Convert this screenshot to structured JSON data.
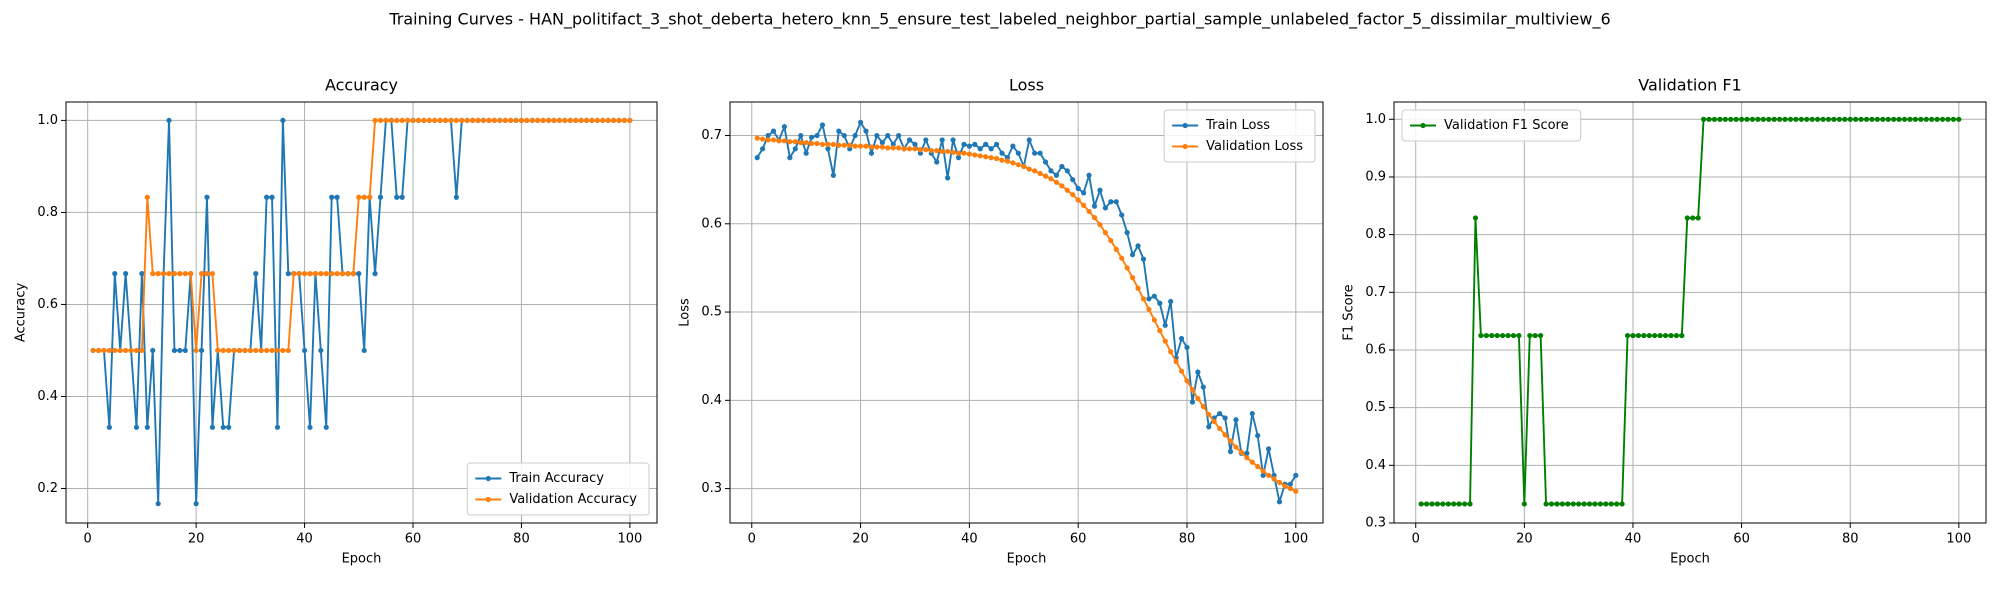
{
  "title": "Training Curves - HAN_politifact_3_shot_deberta_hetero_knn_5_ensure_test_labeled_neighbor_partial_sample_unlabeled_factor_5_dissimilar_multiview_6",
  "chart_data": [
    {
      "type": "line",
      "title": "Accuracy",
      "x_label": "Epoch",
      "y_label": "Accuracy",
      "grid": true,
      "legend": "lower right",
      "x": [
        1,
        2,
        3,
        4,
        5,
        6,
        7,
        8,
        9,
        10,
        11,
        12,
        13,
        14,
        15,
        16,
        17,
        18,
        19,
        20,
        21,
        22,
        23,
        24,
        25,
        26,
        27,
        28,
        29,
        30,
        31,
        32,
        33,
        34,
        35,
        36,
        37,
        38,
        39,
        40,
        41,
        42,
        43,
        44,
        45,
        46,
        47,
        48,
        49,
        50,
        51,
        52,
        53,
        54,
        55,
        56,
        57,
        58,
        59,
        60,
        61,
        62,
        63,
        64,
        65,
        66,
        67,
        68,
        69,
        70,
        71,
        72,
        73,
        74,
        75,
        76,
        77,
        78,
        79,
        80,
        81,
        82,
        83,
        84,
        85,
        86,
        87,
        88,
        89,
        90,
        91,
        92,
        93,
        94,
        95,
        96,
        97,
        98,
        99,
        100
      ],
      "xlim": [
        -4,
        105
      ],
      "xticks": [
        0,
        20,
        40,
        60,
        80,
        100
      ],
      "ylim": [
        0.125,
        1.04
      ],
      "yticks": [
        0.2,
        0.4,
        0.6,
        0.8,
        {
          "value": 1,
          "label": "1.0"
        }
      ],
      "series": [
        {
          "name": "Train Accuracy",
          "color": "#1f77b4",
          "values": [
            0.5,
            0.5,
            0.5,
            0.333,
            0.667,
            0.5,
            0.667,
            0.5,
            0.333,
            0.667,
            0.333,
            0.5,
            0.167,
            0.667,
            1.0,
            0.5,
            0.5,
            0.5,
            0.667,
            0.167,
            0.5,
            0.833,
            0.333,
            0.5,
            0.333,
            0.333,
            0.5,
            0.5,
            0.5,
            0.5,
            0.667,
            0.5,
            0.833,
            0.833,
            0.333,
            1.0,
            0.667,
            0.667,
            0.667,
            0.5,
            0.333,
            0.667,
            0.5,
            0.333,
            0.833,
            0.833,
            0.667,
            0.667,
            0.667,
            0.667,
            0.5,
            0.833,
            0.667,
            0.833,
            1.0,
            1.0,
            0.833,
            0.833,
            1.0,
            1.0,
            1.0,
            1.0,
            1.0,
            1.0,
            1.0,
            1.0,
            1.0,
            0.833,
            1.0,
            1.0,
            1.0,
            1.0,
            1.0,
            1.0,
            1.0,
            1.0,
            1.0,
            1.0,
            1.0,
            1.0,
            1.0,
            1.0,
            1.0,
            1.0,
            1.0,
            1.0,
            1.0,
            1.0,
            1.0,
            1.0,
            1.0,
            1.0,
            1.0,
            1.0,
            1.0,
            1.0,
            1.0,
            1.0,
            1.0,
            1.0
          ]
        },
        {
          "name": "Validation Accuracy",
          "color": "#ff7f0e",
          "values": [
            0.5,
            0.5,
            0.5,
            0.5,
            0.5,
            0.5,
            0.5,
            0.5,
            0.5,
            0.5,
            0.833,
            0.667,
            0.667,
            0.667,
            0.667,
            0.667,
            0.667,
            0.667,
            0.667,
            0.5,
            0.667,
            0.667,
            0.667,
            0.5,
            0.5,
            0.5,
            0.5,
            0.5,
            0.5,
            0.5,
            0.5,
            0.5,
            0.5,
            0.5,
            0.5,
            0.5,
            0.5,
            0.667,
            0.667,
            0.667,
            0.667,
            0.667,
            0.667,
            0.667,
            0.667,
            0.667,
            0.667,
            0.667,
            0.667,
            0.833,
            0.833,
            0.833,
            1.0,
            1.0,
            1.0,
            1.0,
            1.0,
            1.0,
            1.0,
            1.0,
            1.0,
            1.0,
            1.0,
            1.0,
            1.0,
            1.0,
            1.0,
            1.0,
            1.0,
            1.0,
            1.0,
            1.0,
            1.0,
            1.0,
            1.0,
            1.0,
            1.0,
            1.0,
            1.0,
            1.0,
            1.0,
            1.0,
            1.0,
            1.0,
            1.0,
            1.0,
            1.0,
            1.0,
            1.0,
            1.0,
            1.0,
            1.0,
            1.0,
            1.0,
            1.0,
            1.0,
            1.0,
            1.0,
            1.0,
            1.0
          ]
        }
      ]
    },
    {
      "type": "line",
      "title": "Loss",
      "x_label": "Epoch",
      "y_label": "Loss",
      "grid": true,
      "legend": "upper right",
      "x": [
        1,
        2,
        3,
        4,
        5,
        6,
        7,
        8,
        9,
        10,
        11,
        12,
        13,
        14,
        15,
        16,
        17,
        18,
        19,
        20,
        21,
        22,
        23,
        24,
        25,
        26,
        27,
        28,
        29,
        30,
        31,
        32,
        33,
        34,
        35,
        36,
        37,
        38,
        39,
        40,
        41,
        42,
        43,
        44,
        45,
        46,
        47,
        48,
        49,
        50,
        51,
        52,
        53,
        54,
        55,
        56,
        57,
        58,
        59,
        60,
        61,
        62,
        63,
        64,
        65,
        66,
        67,
        68,
        69,
        70,
        71,
        72,
        73,
        74,
        75,
        76,
        77,
        78,
        79,
        80,
        81,
        82,
        83,
        84,
        85,
        86,
        87,
        88,
        89,
        90,
        91,
        92,
        93,
        94,
        95,
        96,
        97,
        98,
        99,
        100
      ],
      "xlim": [
        -4,
        105
      ],
      "xticks": [
        0,
        20,
        40,
        60,
        80,
        100
      ],
      "ylim": [
        0.261,
        0.738
      ],
      "yticks": [
        0.3,
        0.4,
        0.5,
        0.6,
        0.7
      ],
      "series": [
        {
          "name": "Train Loss",
          "color": "#1f77b4",
          "values": [
            0.675,
            0.685,
            0.7,
            0.705,
            0.695,
            0.71,
            0.675,
            0.685,
            0.7,
            0.68,
            0.698,
            0.7,
            0.712,
            0.685,
            0.655,
            0.705,
            0.7,
            0.685,
            0.7,
            0.715,
            0.705,
            0.68,
            0.7,
            0.692,
            0.7,
            0.69,
            0.7,
            0.685,
            0.695,
            0.69,
            0.68,
            0.695,
            0.68,
            0.67,
            0.695,
            0.652,
            0.695,
            0.675,
            0.69,
            0.688,
            0.69,
            0.685,
            0.69,
            0.685,
            0.69,
            0.68,
            0.675,
            0.688,
            0.68,
            0.665,
            0.695,
            0.68,
            0.68,
            0.67,
            0.66,
            0.655,
            0.665,
            0.66,
            0.65,
            0.64,
            0.635,
            0.655,
            0.62,
            0.638,
            0.618,
            0.625,
            0.625,
            0.61,
            0.59,
            0.565,
            0.575,
            0.56,
            0.515,
            0.518,
            0.51,
            0.485,
            0.512,
            0.448,
            0.47,
            0.46,
            0.398,
            0.432,
            0.415,
            0.37,
            0.38,
            0.385,
            0.38,
            0.342,
            0.378,
            0.34,
            0.34,
            0.385,
            0.36,
            0.315,
            0.345,
            0.315,
            0.285,
            0.305,
            0.305,
            0.315
          ]
        },
        {
          "name": "Validation Loss",
          "color": "#ff7f0e",
          "values": [
            0.697,
            0.696,
            0.695,
            0.695,
            0.694,
            0.694,
            0.693,
            0.693,
            0.692,
            0.692,
            0.691,
            0.691,
            0.69,
            0.69,
            0.69,
            0.689,
            0.689,
            0.689,
            0.688,
            0.688,
            0.688,
            0.687,
            0.687,
            0.687,
            0.686,
            0.686,
            0.686,
            0.685,
            0.685,
            0.685,
            0.684,
            0.684,
            0.683,
            0.683,
            0.682,
            0.682,
            0.681,
            0.68,
            0.68,
            0.679,
            0.678,
            0.677,
            0.676,
            0.675,
            0.674,
            0.672,
            0.671,
            0.669,
            0.667,
            0.665,
            0.662,
            0.66,
            0.657,
            0.654,
            0.651,
            0.647,
            0.643,
            0.638,
            0.633,
            0.627,
            0.621,
            0.614,
            0.607,
            0.599,
            0.59,
            0.581,
            0.571,
            0.561,
            0.55,
            0.539,
            0.527,
            0.515,
            0.503,
            0.491,
            0.479,
            0.467,
            0.455,
            0.444,
            0.433,
            0.422,
            0.412,
            0.402,
            0.393,
            0.384,
            0.376,
            0.368,
            0.361,
            0.354,
            0.347,
            0.341,
            0.335,
            0.33,
            0.325,
            0.32,
            0.315,
            0.311,
            0.307,
            0.303,
            0.3,
            0.297
          ]
        }
      ]
    },
    {
      "type": "line",
      "title": "Validation F1",
      "x_label": "Epoch",
      "y_label": "F1 Score",
      "grid": true,
      "legend": "upper left",
      "x": [
        1,
        2,
        3,
        4,
        5,
        6,
        7,
        8,
        9,
        10,
        11,
        12,
        13,
        14,
        15,
        16,
        17,
        18,
        19,
        20,
        21,
        22,
        23,
        24,
        25,
        26,
        27,
        28,
        29,
        30,
        31,
        32,
        33,
        34,
        35,
        36,
        37,
        38,
        39,
        40,
        41,
        42,
        43,
        44,
        45,
        46,
        47,
        48,
        49,
        50,
        51,
        52,
        53,
        54,
        55,
        56,
        57,
        58,
        59,
        60,
        61,
        62,
        63,
        64,
        65,
        66,
        67,
        68,
        69,
        70,
        71,
        72,
        73,
        74,
        75,
        76,
        77,
        78,
        79,
        80,
        81,
        82,
        83,
        84,
        85,
        86,
        87,
        88,
        89,
        90,
        91,
        92,
        93,
        94,
        95,
        96,
        97,
        98,
        99,
        100
      ],
      "xlim": [
        -4,
        105
      ],
      "xticks": [
        0,
        20,
        40,
        60,
        80,
        100
      ],
      "ylim": [
        0.3,
        1.03
      ],
      "yticks": [
        0.3,
        0.4,
        0.5,
        0.6,
        0.7,
        0.8,
        0.9,
        {
          "value": 1,
          "label": "1.0"
        }
      ],
      "series": [
        {
          "name": "Validation F1 Score",
          "color": "#008000",
          "values": [
            0.333,
            0.333,
            0.333,
            0.333,
            0.333,
            0.333,
            0.333,
            0.333,
            0.333,
            0.333,
            0.829,
            0.625,
            0.625,
            0.625,
            0.625,
            0.625,
            0.625,
            0.625,
            0.625,
            0.333,
            0.625,
            0.625,
            0.625,
            0.333,
            0.333,
            0.333,
            0.333,
            0.333,
            0.333,
            0.333,
            0.333,
            0.333,
            0.333,
            0.333,
            0.333,
            0.333,
            0.333,
            0.333,
            0.625,
            0.625,
            0.625,
            0.625,
            0.625,
            0.625,
            0.625,
            0.625,
            0.625,
            0.625,
            0.625,
            0.829,
            0.829,
            0.829,
            1.0,
            1.0,
            1.0,
            1.0,
            1.0,
            1.0,
            1.0,
            1.0,
            1.0,
            1.0,
            1.0,
            1.0,
            1.0,
            1.0,
            1.0,
            1.0,
            1.0,
            1.0,
            1.0,
            1.0,
            1.0,
            1.0,
            1.0,
            1.0,
            1.0,
            1.0,
            1.0,
            1.0,
            1.0,
            1.0,
            1.0,
            1.0,
            1.0,
            1.0,
            1.0,
            1.0,
            1.0,
            1.0,
            1.0,
            1.0,
            1.0,
            1.0,
            1.0,
            1.0,
            1.0,
            1.0,
            1.0,
            1.0
          ]
        }
      ]
    }
  ]
}
